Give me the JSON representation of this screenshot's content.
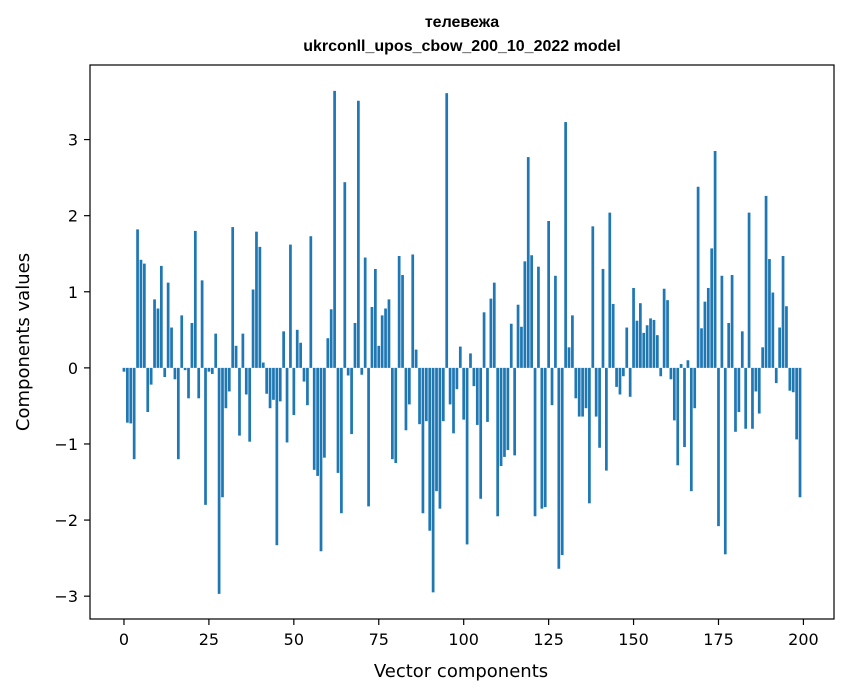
{
  "chart_data": {
    "type": "bar",
    "title_line1": "телевежа",
    "title_line2": "ukrconll_upos_cbow_200_10_2022 model",
    "xlabel": "Vector components",
    "ylabel": "Components values",
    "xlim": [
      -10,
      209
    ],
    "ylim": [
      -3.3,
      3.98
    ],
    "xticks": [
      0,
      25,
      50,
      75,
      100,
      125,
      150,
      175,
      200
    ],
    "yticks": [
      -3,
      -2,
      -1,
      0,
      1,
      2,
      3
    ],
    "xtick_labels": [
      "0",
      "25",
      "50",
      "75",
      "100",
      "125",
      "150",
      "175",
      "200"
    ],
    "ytick_labels": [
      "−3",
      "−2",
      "−1",
      "0",
      "1",
      "2",
      "3"
    ],
    "bar_color": "#1f77b4",
    "grid": false,
    "x": [
      0,
      1,
      2,
      3,
      4,
      5,
      6,
      7,
      8,
      9,
      10,
      11,
      12,
      13,
      14,
      15,
      16,
      17,
      18,
      19,
      20,
      21,
      22,
      23,
      24,
      25,
      26,
      27,
      28,
      29,
      30,
      31,
      32,
      33,
      34,
      35,
      36,
      37,
      38,
      39,
      40,
      41,
      42,
      43,
      44,
      45,
      46,
      47,
      48,
      49,
      50,
      51,
      52,
      53,
      54,
      55,
      56,
      57,
      58,
      59,
      60,
      61,
      62,
      63,
      64,
      65,
      66,
      67,
      68,
      69,
      70,
      71,
      72,
      73,
      74,
      75,
      76,
      77,
      78,
      79,
      80,
      81,
      82,
      83,
      84,
      85,
      86,
      87,
      88,
      89,
      90,
      91,
      92,
      93,
      94,
      95,
      96,
      97,
      98,
      99,
      100,
      101,
      102,
      103,
      104,
      105,
      106,
      107,
      108,
      109,
      110,
      111,
      112,
      113,
      114,
      115,
      116,
      117,
      118,
      119,
      120,
      121,
      122,
      123,
      124,
      125,
      126,
      127,
      128,
      129,
      130,
      131,
      132,
      133,
      134,
      135,
      136,
      137,
      138,
      139,
      140,
      141,
      142,
      143,
      144,
      145,
      146,
      147,
      148,
      149,
      150,
      151,
      152,
      153,
      154,
      155,
      156,
      157,
      158,
      159,
      160,
      161,
      162,
      163,
      164,
      165,
      166,
      167,
      168,
      169,
      170,
      171,
      172,
      173,
      174,
      175,
      176,
      177,
      178,
      179,
      180,
      181,
      182,
      183,
      184,
      185,
      186,
      187,
      188,
      189,
      190,
      191,
      192,
      193,
      194,
      195,
      196,
      197,
      198,
      199
    ],
    "values": [
      -0.05,
      -0.72,
      -0.73,
      -1.2,
      1.82,
      1.42,
      1.37,
      -0.58,
      -0.22,
      0.9,
      0.78,
      1.34,
      -0.12,
      1.12,
      0.53,
      -0.15,
      -1.2,
      0.69,
      -0.03,
      -0.4,
      0.59,
      1.8,
      -0.4,
      1.15,
      -1.8,
      -0.05,
      -0.08,
      0.45,
      -2.97,
      -1.7,
      -0.53,
      -0.31,
      1.85,
      0.29,
      -0.89,
      0.45,
      -0.35,
      -0.97,
      1.03,
      1.79,
      1.59,
      0.07,
      -0.34,
      -0.53,
      -0.42,
      -2.33,
      -0.44,
      0.48,
      -0.98,
      1.62,
      -0.62,
      0.5,
      0.33,
      -0.18,
      -0.49,
      1.73,
      -1.34,
      -1.42,
      -2.41,
      -1.18,
      0.39,
      0.77,
      3.64,
      -1.38,
      -1.91,
      2.44,
      -0.1,
      -0.87,
      0.59,
      3.51,
      -0.09,
      1.45,
      -1.82,
      0.8,
      1.3,
      0.29,
      0.69,
      0.78,
      0.9,
      -1.2,
      -1.25,
      1.47,
      1.22,
      -0.82,
      -0.48,
      1.49,
      0.24,
      -0.74,
      -1.91,
      -0.7,
      -2.14,
      -2.95,
      -1.62,
      -1.85,
      -0.7,
      3.61,
      -0.48,
      -0.86,
      -0.28,
      0.28,
      -0.68,
      -2.32,
      0.19,
      -0.24,
      -0.75,
      -1.72,
      0.73,
      -0.71,
      0.91,
      1.12,
      -1.95,
      -1.29,
      -1.17,
      -1.08,
      0.58,
      -1.15,
      0.83,
      0.54,
      1.4,
      2.77,
      1.48,
      -1.95,
      1.33,
      -1.85,
      -1.83,
      1.93,
      -0.49,
      1.21,
      -2.64,
      -2.46,
      3.23,
      0.27,
      0.69,
      -0.4,
      -0.64,
      -0.64,
      -0.53,
      -1.78,
      1.86,
      -0.64,
      -1.05,
      1.3,
      -1.35,
      2.04,
      0.84,
      -0.25,
      -0.35,
      -0.11,
      0.53,
      -0.38,
      1.05,
      0.62,
      0.85,
      0.46,
      0.56,
      0.65,
      0.63,
      0.43,
      -0.11,
      1.04,
      0.89,
      -0.15,
      -0.69,
      -1.28,
      0.05,
      -1.04,
      0.1,
      -1.62,
      -0.53,
      2.38,
      0.52,
      0.87,
      1.05,
      1.57,
      2.85,
      -2.08,
      1.21,
      -2.45,
      0.59,
      1.22,
      -0.84,
      -0.58,
      0.48,
      -0.8,
      2.04,
      -0.8,
      -0.31,
      -0.6,
      0.27,
      2.26,
      1.43,
      0.99,
      -0.2,
      0.53,
      1.47,
      0.81,
      -0.3,
      -0.32,
      -0.94,
      -1.7
    ]
  }
}
